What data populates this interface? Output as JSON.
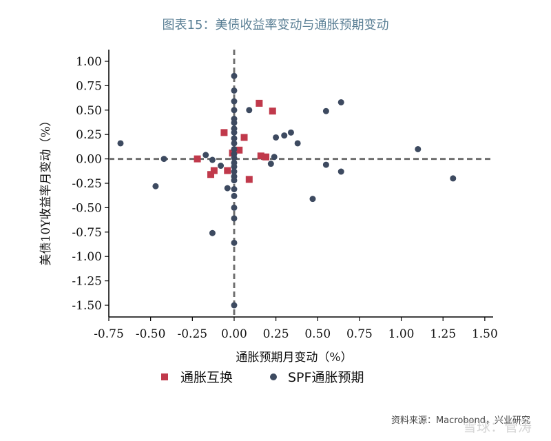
{
  "title": "图表15：美债收益率变动与通胀预期变动",
  "source": "资料来源：Macrobond，兴业研究",
  "watermark": "雪球：管涛",
  "colors": {
    "title": "#5a7f95",
    "swap": "#c0394b",
    "spf": "#3d4a60",
    "zero_line": "#707070",
    "axis": "#000000"
  },
  "chart_data": {
    "type": "scatter",
    "title": "图表15：美债收益率变动与通胀预期变动",
    "xlabel": "通胀预期月变动（%）",
    "ylabel": "美债10Y收益率月变动（%）",
    "xlim": [
      -0.75,
      1.55
    ],
    "ylim": [
      -1.62,
      1.12
    ],
    "xticks": [
      "-0.75",
      "-0.50",
      "-0.25",
      "0.00",
      "0.25",
      "0.50",
      "0.75",
      "1.00",
      "1.25",
      "1.50"
    ],
    "yticks": [
      "1.00",
      "0.75",
      "0.50",
      "0.25",
      "0.00",
      "-0.25",
      "-0.50",
      "-0.75",
      "-1.00",
      "-1.25",
      "-1.50"
    ],
    "zero_lines": true,
    "grid": false,
    "legend_position": "bottom",
    "series": [
      {
        "name": "通胀互换",
        "marker": "square",
        "color": "#c0394b",
        "points": [
          [
            0.15,
            0.57
          ],
          [
            0.23,
            0.49
          ],
          [
            -0.06,
            0.27
          ],
          [
            0.06,
            0.22
          ],
          [
            0.03,
            0.09
          ],
          [
            -0.01,
            0.06
          ],
          [
            -0.22,
            0.0
          ],
          [
            0.16,
            0.03
          ],
          [
            0.19,
            0.02
          ],
          [
            -0.12,
            -0.12
          ],
          [
            -0.04,
            -0.12
          ],
          [
            -0.14,
            -0.16
          ],
          [
            0.09,
            -0.21
          ]
        ]
      },
      {
        "name": "SPF通胀预期",
        "marker": "circle",
        "color": "#3d4a60",
        "points": [
          [
            0.0,
            0.85
          ],
          [
            0.0,
            0.7
          ],
          [
            0.0,
            0.59
          ],
          [
            0.0,
            0.5
          ],
          [
            0.0,
            0.41
          ],
          [
            0.0,
            0.37
          ],
          [
            0.0,
            0.31
          ],
          [
            0.0,
            0.27
          ],
          [
            0.0,
            0.21
          ],
          [
            0.0,
            0.16
          ],
          [
            0.0,
            0.1
          ],
          [
            0.0,
            0.05
          ],
          [
            0.0,
            0.01
          ],
          [
            0.0,
            -0.04
          ],
          [
            0.0,
            -0.08
          ],
          [
            0.0,
            -0.13
          ],
          [
            0.0,
            -0.18
          ],
          [
            0.0,
            -0.22
          ],
          [
            0.0,
            -0.31
          ],
          [
            0.0,
            -0.38
          ],
          [
            0.0,
            -0.5
          ],
          [
            0.0,
            -0.61
          ],
          [
            0.0,
            -0.86
          ],
          [
            0.0,
            -1.5
          ],
          [
            0.09,
            0.5
          ],
          [
            0.25,
            0.22
          ],
          [
            0.3,
            0.24
          ],
          [
            0.34,
            0.27
          ],
          [
            0.38,
            0.16
          ],
          [
            0.55,
            0.49
          ],
          [
            0.64,
            0.58
          ],
          [
            -0.68,
            0.16
          ],
          [
            -0.42,
            0.0
          ],
          [
            -0.47,
            -0.28
          ],
          [
            -0.17,
            0.04
          ],
          [
            -0.13,
            -0.01
          ],
          [
            -0.08,
            -0.07
          ],
          [
            -0.04,
            -0.3
          ],
          [
            0.22,
            -0.05
          ],
          [
            0.24,
            0.02
          ],
          [
            0.47,
            -0.41
          ],
          [
            0.55,
            -0.06
          ],
          [
            0.64,
            -0.13
          ],
          [
            1.1,
            0.1
          ],
          [
            1.31,
            -0.2
          ],
          [
            -0.13,
            -0.76
          ]
        ]
      }
    ]
  }
}
